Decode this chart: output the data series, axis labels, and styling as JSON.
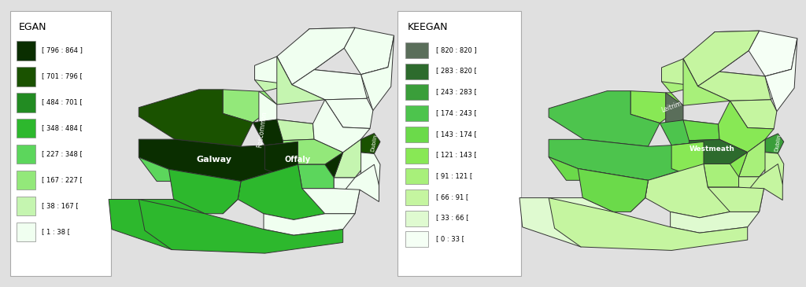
{
  "title_left": "EGAN",
  "title_right": "KEEGAN",
  "bg_color": "#e0e0e0",
  "egan_legend": [
    {
      "label": "[ 796 : 864 ]",
      "color": "#0a2e00"
    },
    {
      "label": "[ 701 : 796 [",
      "color": "#1a5200"
    },
    {
      "label": "[ 484 : 701 [",
      "color": "#228b22"
    },
    {
      "label": "[ 348 : 484 [",
      "color": "#2db82d"
    },
    {
      "label": "[ 227 : 348 [",
      "color": "#5cd65c"
    },
    {
      "label": "[ 167 : 227 [",
      "color": "#93e87a"
    },
    {
      "label": "[ 38 : 167 [",
      "color": "#c5f5b0"
    },
    {
      "label": "[ 1 : 38 [",
      "color": "#f0fff0"
    }
  ],
  "keegan_legend": [
    {
      "label": "[ 820 : 820 ]",
      "color": "#5a6e5a"
    },
    {
      "label": "[ 283 : 820 [",
      "color": "#2d6b2d"
    },
    {
      "label": "[ 243 : 283 [",
      "color": "#3a9e3a"
    },
    {
      "label": "[ 174 : 243 [",
      "color": "#4dc44d"
    },
    {
      "label": "[ 143 : 174 [",
      "color": "#6bda4a"
    },
    {
      "label": "[ 121 : 143 [",
      "color": "#88e855"
    },
    {
      "label": "[ 91 : 121 [",
      "color": "#a8f07a"
    },
    {
      "label": "[ 66 : 91 [",
      "color": "#c5f5a0"
    },
    {
      "label": "[ 33 : 66 [",
      "color": "#dffad0"
    },
    {
      "label": "[ 0 : 33 [",
      "color": "#f5fff5"
    }
  ],
  "egan_county_colors": {
    "Donegal": "#c5f5b0",
    "Londonderry": "#f0fff0",
    "Antrim": "#f0fff0",
    "Tyrone": "#f0fff0",
    "Fermanagh": "#f0fff0",
    "Armagh": "#f0fff0",
    "Down": "#f0fff0",
    "Monaghan": "#f0fff0",
    "Cavan": "#c5f5b0",
    "Louth": "#f0fff0",
    "Sligo": "#93e87a",
    "Leitrim": "#f0fff0",
    "Roscommon": "#0a2e00",
    "Longford": "#c5f5b0",
    "Meath": "#f0fff0",
    "Mayo": "#1a5200",
    "Galway": "#0a2e00",
    "Westmeath": "#93e87a",
    "Dublin": "#1a5200",
    "Kildare": "#c5f5b0",
    "Offaly": "#0a2e00",
    "Wicklow": "#f0fff0",
    "Laois": "#5cd65c",
    "Tipperary": "#2db82d",
    "Carlow": "#f0fff0",
    "Wexford": "#f0fff0",
    "Kilkenny": "#f0fff0",
    "Waterford": "#f0fff0",
    "Clare": "#5cd65c",
    "Limerick": "#2db82d",
    "Kerry": "#2db82d",
    "Cork": "#2db82d"
  },
  "keegan_county_colors": {
    "Donegal": "#a8f07a",
    "Londonderry": "#f5fff5",
    "Antrim": "#f5fff5",
    "Tyrone": "#c5f5a0",
    "Fermanagh": "#c5f5a0",
    "Armagh": "#f5fff5",
    "Down": "#f5fff5",
    "Monaghan": "#c5f5a0",
    "Cavan": "#a8f07a",
    "Louth": "#c5f5a0",
    "Sligo": "#88e855",
    "Leitrim": "#5a6e5a",
    "Roscommon": "#4dc44d",
    "Longford": "#6bda4a",
    "Meath": "#88e855",
    "Mayo": "#4dc44d",
    "Galway": "#4dc44d",
    "Westmeath": "#2d6b2d",
    "Dublin": "#3a9e3a",
    "Kildare": "#a8f07a",
    "Offaly": "#88e855",
    "Wicklow": "#c5f5a0",
    "Laois": "#a8f07a",
    "Tipperary": "#c5f5a0",
    "Carlow": "#c5f5a0",
    "Wexford": "#c5f5a0",
    "Kilkenny": "#c5f5a0",
    "Waterford": "#dffad0",
    "Clare": "#6bda4a",
    "Limerick": "#6bda4a",
    "Kerry": "#dffad0",
    "Cork": "#c5f5a0"
  }
}
